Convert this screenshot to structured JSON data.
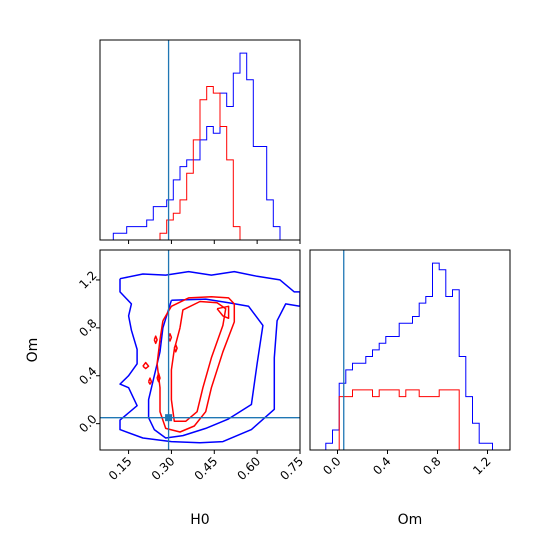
{
  "colors": {
    "blue": "#0000ff",
    "red": "#ff0000",
    "truth": "#1f77b4",
    "axis": "#000000"
  },
  "chart_data": [
    {
      "panel": "hist-H0",
      "type": "histogram",
      "xlim": [
        0.05,
        0.75
      ],
      "bin_edges": [
        0.05,
        0.0733,
        0.0967,
        0.12,
        0.1433,
        0.1667,
        0.19,
        0.2133,
        0.2367,
        0.26,
        0.2833,
        0.3067,
        0.33,
        0.3533,
        0.3767,
        0.4,
        0.4233,
        0.4467,
        0.47,
        0.4933,
        0.5167,
        0.54,
        0.5633,
        0.5867,
        0.61,
        0.6333,
        0.6567,
        0.68,
        0.7033,
        0.7267,
        0.75
      ],
      "series": [
        {
          "color": "blue",
          "counts": [
            0,
            0,
            1,
            1,
            2,
            2,
            2,
            3,
            5,
            5,
            6,
            9,
            11,
            12,
            12,
            15,
            17,
            16,
            22,
            20,
            25,
            28,
            24,
            14,
            14,
            6,
            2,
            0,
            0,
            0
          ]
        },
        {
          "color": "red",
          "counts": [
            0,
            0,
            0,
            0,
            0,
            0,
            0,
            0,
            0,
            1,
            3,
            4,
            6,
            10,
            15,
            21,
            23,
            22,
            17,
            12,
            2,
            0,
            0,
            0,
            0,
            0,
            0,
            0,
            0,
            0
          ]
        }
      ],
      "truth_x": 0.29
    },
    {
      "panel": "contour-H0-Om",
      "type": "contour",
      "xlim": [
        0.05,
        0.75
      ],
      "ylim": [
        -0.22,
        1.45
      ],
      "x_ticks": [
        "0.15",
        "0.30",
        "0.45",
        "0.60",
        "0.75"
      ],
      "y_ticks": [
        "0.0",
        "0.4",
        "0.8",
        "1.2"
      ],
      "xlabel": "H0",
      "ylabel": "Om",
      "truth": {
        "x": 0.29,
        "y": 0.05
      },
      "series": [
        {
          "color": "blue",
          "contours": [
            [
              [
                0.12,
                1.21
              ],
              [
                0.2,
                1.25
              ],
              [
                0.28,
                1.24
              ],
              [
                0.36,
                1.27
              ],
              [
                0.44,
                1.24
              ],
              [
                0.52,
                1.27
              ],
              [
                0.6,
                1.23
              ],
              [
                0.68,
                1.2
              ],
              [
                0.73,
                1.1
              ],
              [
                0.75,
                1.1
              ],
              [
                0.75,
                0.98
              ],
              [
                0.7,
                1.0
              ],
              [
                0.67,
                0.86
              ],
              [
                0.66,
                0.55
              ],
              [
                0.66,
                0.12
              ],
              [
                0.58,
                -0.05
              ],
              [
                0.48,
                -0.15
              ],
              [
                0.4,
                -0.16
              ],
              [
                0.3,
                -0.15
              ],
              [
                0.2,
                -0.12
              ],
              [
                0.12,
                -0.05
              ],
              [
                0.12,
                0.03
              ],
              [
                0.18,
                0.15
              ],
              [
                0.15,
                0.3
              ],
              [
                0.12,
                0.33
              ],
              [
                0.15,
                0.4
              ],
              [
                0.18,
                0.5
              ],
              [
                0.18,
                0.62
              ],
              [
                0.16,
                0.78
              ],
              [
                0.15,
                0.9
              ],
              [
                0.16,
                1.0
              ],
              [
                0.12,
                1.1
              ],
              [
                0.12,
                1.21
              ]
            ],
            [
              [
                0.3,
                1.03
              ],
              [
                0.42,
                1.04
              ],
              [
                0.5,
                1.01
              ],
              [
                0.57,
                0.98
              ],
              [
                0.62,
                0.82
              ],
              [
                0.6,
                0.5
              ],
              [
                0.58,
                0.16
              ],
              [
                0.5,
                0.04
              ],
              [
                0.42,
                -0.04
              ],
              [
                0.34,
                -0.1
              ],
              [
                0.28,
                -0.12
              ],
              [
                0.24,
                -0.05
              ],
              [
                0.22,
                0.05
              ],
              [
                0.22,
                0.2
              ],
              [
                0.24,
                0.4
              ],
              [
                0.26,
                0.6
              ],
              [
                0.27,
                0.8
              ],
              [
                0.3,
                1.03
              ]
            ]
          ]
        },
        {
          "color": "red",
          "contours": [
            [
              [
                0.27,
                0.86
              ],
              [
                0.3,
                0.98
              ],
              [
                0.36,
                1.05
              ],
              [
                0.44,
                1.06
              ],
              [
                0.5,
                1.05
              ],
              [
                0.52,
                1.0
              ],
              [
                0.52,
                0.85
              ],
              [
                0.48,
                0.6
              ],
              [
                0.44,
                0.3
              ],
              [
                0.42,
                0.1
              ],
              [
                0.38,
                -0.02
              ],
              [
                0.33,
                -0.07
              ],
              [
                0.28,
                -0.04
              ],
              [
                0.26,
                0.1
              ],
              [
                0.26,
                0.3
              ],
              [
                0.25,
                0.5
              ],
              [
                0.26,
                0.7
              ],
              [
                0.27,
                0.86
              ]
            ],
            [
              [
                0.33,
                0.8
              ],
              [
                0.34,
                0.95
              ],
              [
                0.4,
                1.02
              ],
              [
                0.46,
                1.01
              ],
              [
                0.49,
                0.96
              ],
              [
                0.48,
                0.82
              ],
              [
                0.44,
                0.55
              ],
              [
                0.41,
                0.3
              ],
              [
                0.39,
                0.1
              ],
              [
                0.35,
                0.02
              ],
              [
                0.31,
                0.02
              ],
              [
                0.3,
                0.2
              ],
              [
                0.3,
                0.45
              ],
              [
                0.31,
                0.62
              ],
              [
                0.33,
                0.8
              ]
            ],
            [
              [
                0.46,
                0.96
              ],
              [
                0.5,
                0.98
              ],
              [
                0.5,
                0.88
              ],
              [
                0.48,
                0.9
              ],
              [
                0.46,
                0.96
              ]
            ],
            [
              [
                0.2,
                0.48
              ],
              [
                0.21,
                0.51
              ],
              [
                0.22,
                0.48
              ],
              [
                0.21,
                0.46
              ],
              [
                0.2,
                0.48
              ]
            ],
            [
              [
                0.22,
                0.35
              ],
              [
                0.225,
                0.38
              ],
              [
                0.23,
                0.35
              ],
              [
                0.225,
                0.33
              ],
              [
                0.22,
                0.35
              ]
            ],
            [
              [
                0.25,
                0.38
              ],
              [
                0.255,
                0.42
              ],
              [
                0.26,
                0.38
              ],
              [
                0.255,
                0.35
              ],
              [
                0.25,
                0.38
              ]
            ],
            [
              [
                0.24,
                0.7
              ],
              [
                0.245,
                0.73
              ],
              [
                0.25,
                0.7
              ],
              [
                0.245,
                0.67
              ],
              [
                0.24,
                0.7
              ]
            ],
            [
              [
                0.29,
                0.72
              ],
              [
                0.295,
                0.75
              ],
              [
                0.3,
                0.72
              ],
              [
                0.295,
                0.69
              ],
              [
                0.29,
                0.72
              ]
            ],
            [
              [
                0.31,
                0.63
              ],
              [
                0.315,
                0.66
              ],
              [
                0.32,
                0.63
              ],
              [
                0.315,
                0.6
              ],
              [
                0.31,
                0.63
              ]
            ]
          ]
        }
      ]
    },
    {
      "panel": "hist-Om",
      "type": "histogram",
      "xlim": [
        -0.22,
        1.38
      ],
      "x_ticks": [
        "0.0",
        "0.4",
        "0.8",
        "1.2"
      ],
      "xlabel": "Om",
      "bin_edges": [
        -0.2,
        -0.1467,
        -0.0933,
        -0.04,
        0.0133,
        0.0667,
        0.12,
        0.1733,
        0.2267,
        0.28,
        0.3333,
        0.3867,
        0.44,
        0.4933,
        0.5467,
        0.6,
        0.6533,
        0.7067,
        0.76,
        0.8133,
        0.8667,
        0.92,
        0.9733,
        1.0267,
        1.08,
        1.1333,
        1.1867,
        1.24,
        1.2933,
        1.3467
      ],
      "series": [
        {
          "color": "blue",
          "counts": [
            0,
            0,
            1,
            3,
            10,
            12,
            13,
            13,
            14,
            15,
            16,
            17,
            17,
            19,
            19,
            20,
            22,
            23,
            28,
            27,
            23,
            24,
            14,
            8,
            4,
            1,
            1,
            0,
            0
          ]
        },
        {
          "color": "red",
          "counts": [
            0,
            0,
            0,
            0,
            8,
            8,
            9,
            9,
            9,
            8,
            9,
            9,
            9,
            8,
            9,
            9,
            8,
            8,
            8,
            9,
            9,
            9,
            0,
            0,
            0,
            0,
            0,
            0,
            0
          ]
        }
      ],
      "truth_x": 0.05
    }
  ]
}
